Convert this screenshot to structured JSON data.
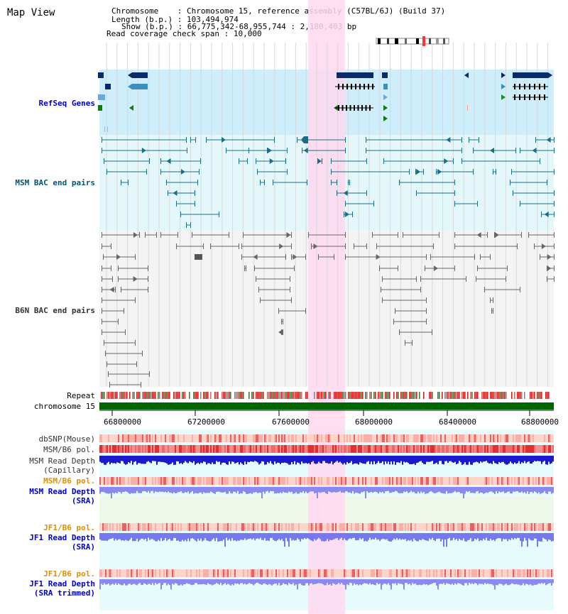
{
  "header": {
    "title": "Map View",
    "chromosome_label": "Chromosome",
    "chromosome_value": "Chromosome 15, reference assembly (C57BL/6J) (Build 37)",
    "length_label": "Length (b.p.)",
    "length_value": "103,494,974",
    "show_label": "Show (b.p.)",
    "show_value": "66,775,342-68,955,744 : 2,180,403 bp",
    "coverage_label": "Read coverage check span",
    "coverage_value": "10,000"
  },
  "tracks": {
    "refseq": "RefSeq Genes",
    "msm_bac": "MSM BAC end pairs",
    "b6n_bac": "B6N BAC end pairs",
    "repeat": "Repeat",
    "chromosome": "chromosome 15",
    "dbsnp": "dbSNP(Mouse)",
    "msm_b6_pol": "MSM/B6 pol.",
    "msm_read_depth_cap_1": "MSM Read Depth",
    "msm_read_depth_cap_2": "(Capillary)",
    "msm_b6_pol_2": "MSM/B6 pol.",
    "msm_read_depth_sra_1": "MSM Read Depth",
    "msm_read_depth_sra_2": "(SRA)",
    "jf1_b6_pol": "JF1/B6 pol.",
    "jf1_read_depth_sra_1": "JF1 Read Depth",
    "jf1_read_depth_sra_2": "(SRA)",
    "jf1_b6_pol_2": "JF1/B6 pol.",
    "jf1_read_depth_trim_1": "JF1 Read Depth",
    "jf1_read_depth_trim_2": "(SRA trimmed)"
  },
  "axis": {
    "ticks": [
      "66800000",
      "67200000",
      "67600000",
      "68000000",
      "68400000",
      "68800000"
    ]
  },
  "colors": {
    "refseq_bg": "#cdeefa",
    "msm_bg": "#e4f8fb",
    "b6n_bg": "#f4f4f4",
    "highlight": "#ffd8f0",
    "refseq_label": "#0000cc",
    "msm_label": "#005577",
    "b6n_label": "#333333",
    "orange_label": "#e09000",
    "blue_label": "#0000cc",
    "chromosome_bar": "#006600"
  }
}
